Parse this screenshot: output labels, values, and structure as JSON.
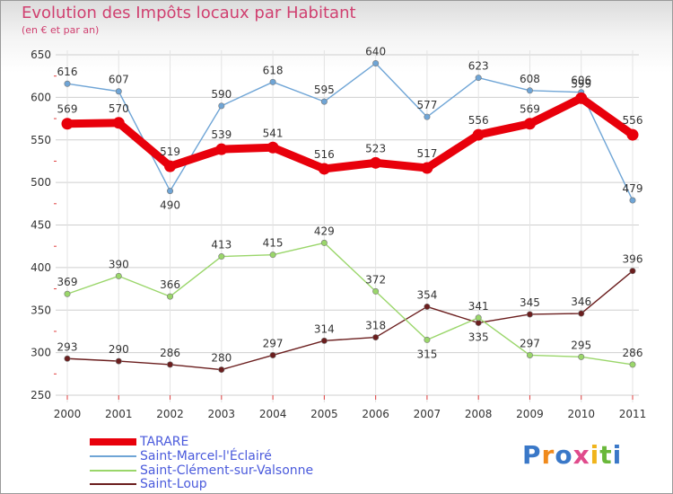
{
  "chart_title": "Evolution des Impôts locaux par Habitant",
  "chart_subtitle": "(en € et par an)",
  "logo": {
    "text": "Proxiti",
    "letter_colors": [
      "#3a78c8",
      "#f08a1c",
      "#3a78c8",
      "#e04b8c",
      "#f0b41c",
      "#6ab83a",
      "#3a78c8"
    ]
  },
  "chart_data": {
    "type": "line",
    "title": "Evolution des Impôts locaux par Habitant",
    "subtitle": "(en € et par an)",
    "xlabel": "",
    "ylabel": "",
    "x": [
      "2000",
      "2001",
      "2002",
      "2003",
      "2004",
      "2005",
      "2006",
      "2007",
      "2008",
      "2009",
      "2010",
      "2011"
    ],
    "ylim": [
      250,
      650
    ],
    "yticks": [
      250,
      300,
      350,
      400,
      450,
      500,
      550,
      600,
      650
    ],
    "grid": "horizontal",
    "legend_position": "bottom-left",
    "series": [
      {
        "name": "TARARE",
        "color": "#e8000b",
        "values": [
          569,
          570,
          519,
          539,
          541,
          516,
          523,
          517,
          556,
          569,
          599,
          556
        ]
      },
      {
        "name": "Saint-Marcel-l'Éclairé",
        "color": "#6fa5d6",
        "values": [
          616,
          607,
          490,
          590,
          618,
          595,
          640,
          577,
          623,
          608,
          606,
          479
        ]
      },
      {
        "name": "Saint-Clément-sur-Valsonne",
        "color": "#9ad66a",
        "values": [
          369,
          390,
          366,
          413,
          415,
          429,
          372,
          315,
          341,
          297,
          295,
          286
        ]
      },
      {
        "name": "Saint-Loup",
        "color": "#6b1e1e",
        "values": [
          293,
          290,
          286,
          280,
          297,
          314,
          318,
          354,
          335,
          345,
          346,
          396
        ]
      }
    ]
  }
}
